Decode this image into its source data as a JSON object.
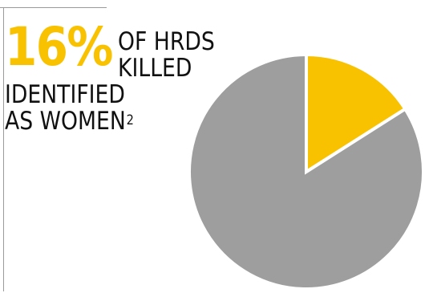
{
  "accent_color": "#f8c200",
  "text_color": "#111111",
  "stat": {
    "value": "16%",
    "line1": "OF HRDS",
    "line2": "KILLED",
    "line3": "IDENTIFIED",
    "line4": "AS WOMEN",
    "footnote": "2"
  },
  "chart_data": {
    "type": "pie",
    "title": "",
    "slices": [
      {
        "value": 16,
        "color": "#f8c200"
      },
      {
        "value": 84,
        "color": "#9e9e9e"
      }
    ],
    "legend": "none"
  }
}
